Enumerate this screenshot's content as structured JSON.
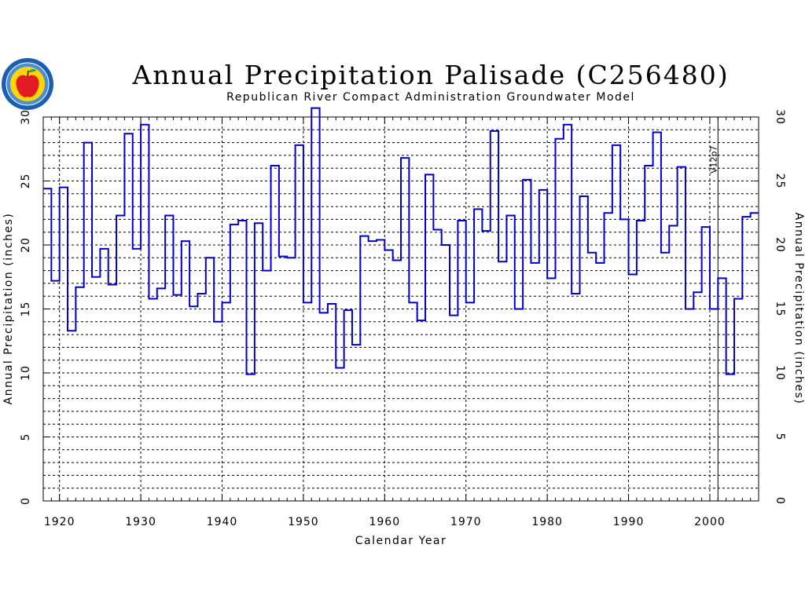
{
  "chart_data": {
    "type": "line",
    "step": true,
    "title": "Annual Precipitation Palisade (C256480)",
    "subtitle": "Republican River Compact Administration Groundwater Model",
    "xlabel": "Calendar Year",
    "ylabel": "Annual Precipitation (inches)",
    "ylabel_right": "Annual Precipitation (inches)",
    "xlim": [
      1918,
      2006
    ],
    "ylim": [
      0,
      30
    ],
    "x_ticks": [
      "1920",
      "1930",
      "1940",
      "1950",
      "1960",
      "1970",
      "1980",
      "1990",
      "2000"
    ],
    "y_ticks": [
      "0",
      "5",
      "10",
      "15",
      "20",
      "25",
      "30"
    ],
    "grid": true,
    "line_color": "#0000cc",
    "marker_line": {
      "x": 2001,
      "label": "V12p7"
    },
    "series": [
      {
        "x": [
          1918,
          1919,
          1920,
          1921,
          1922,
          1923,
          1924,
          1925,
          1926,
          1927,
          1928,
          1929,
          1930,
          1931,
          1932,
          1933,
          1934,
          1935,
          1936,
          1937,
          1938,
          1939,
          1940,
          1941,
          1942,
          1943,
          1944,
          1945,
          1946,
          1947,
          1948,
          1949,
          1950,
          1951,
          1952,
          1953,
          1954,
          1955,
          1956,
          1957,
          1958,
          1959,
          1960,
          1961,
          1962,
          1963,
          1964,
          1965,
          1966,
          1967,
          1968,
          1969,
          1970,
          1971,
          1972,
          1973,
          1974,
          1975,
          1976,
          1977,
          1978,
          1979,
          1980,
          1981,
          1982,
          1983,
          1984,
          1985,
          1986,
          1987,
          1988,
          1989,
          1990,
          1991,
          1992,
          1993,
          1994,
          1995,
          1996,
          1997,
          1998,
          1999,
          2000,
          2001,
          2002,
          2003,
          2004,
          2005
        ],
        "values": [
          24.4,
          17.2,
          24.5,
          13.3,
          16.7,
          28.0,
          17.5,
          19.7,
          16.9,
          22.3,
          28.7,
          19.7,
          29.4,
          15.8,
          16.6,
          22.3,
          16.1,
          20.3,
          15.2,
          16.2,
          19.0,
          14.0,
          15.5,
          21.6,
          21.9,
          9.9,
          21.7,
          18.0,
          26.2,
          19.1,
          19.0,
          27.8,
          15.5,
          30.7,
          14.7,
          15.4,
          10.4,
          14.9,
          12.2,
          20.7,
          20.3,
          20.4,
          19.6,
          18.8,
          26.8,
          15.5,
          14.1,
          25.5,
          21.2,
          20.0,
          14.5,
          21.9,
          15.5,
          22.8,
          21.1,
          28.9,
          18.7,
          22.3,
          15.0,
          25.1,
          18.6,
          24.3,
          17.4,
          28.3,
          29.4,
          16.2,
          23.8,
          19.4,
          18.6,
          22.5,
          27.8,
          22.0,
          17.7,
          21.9,
          26.2,
          28.8,
          19.4,
          21.5,
          26.1,
          15.0,
          16.3,
          21.4,
          15.0,
          17.4,
          9.9,
          15.8,
          22.2,
          22.5
        ]
      }
    ]
  },
  "logo": {
    "name": "apple-seal-icon",
    "colors": {
      "ring": "#1a5fb4",
      "fill": "#ffd700",
      "apple": "#e01b24",
      "leaf": "#26a269"
    }
  }
}
